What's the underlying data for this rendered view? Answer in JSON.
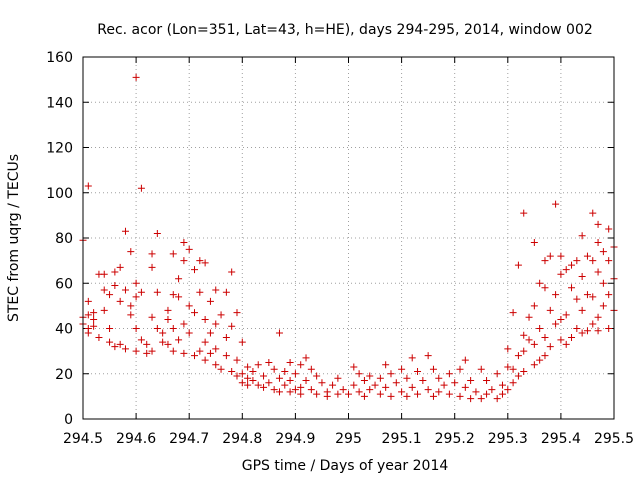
{
  "chart_data": {
    "type": "scatter",
    "title": "Rec. acor (Lon=351, Lat=43, h=HE), days 294-295, 2014, window 002",
    "xlabel": "GPS time / Days of year 2014",
    "ylabel": "STEC from uqrg / TECUs",
    "xlim": [
      294.5,
      295.5
    ],
    "ylim": [
      0,
      160
    ],
    "xticks": [
      "294.5",
      "294.6",
      "294.7",
      "294.8",
      "294.9",
      "295",
      "295.1",
      "295.2",
      "295.3",
      "295.4",
      "295.5"
    ],
    "yticks": [
      "0",
      "20",
      "40",
      "60",
      "80",
      "100",
      "120",
      "140",
      "160"
    ],
    "grid": true,
    "marker": "+",
    "color": "#cc0000",
    "points": [
      [
        294.5,
        79
      ],
      [
        294.5,
        45
      ],
      [
        294.5,
        42
      ],
      [
        294.51,
        40
      ],
      [
        294.51,
        46
      ],
      [
        294.51,
        52
      ],
      [
        294.51,
        38
      ],
      [
        294.51,
        103
      ],
      [
        294.52,
        44
      ],
      [
        294.52,
        47
      ],
      [
        294.52,
        41
      ],
      [
        294.53,
        64
      ],
      [
        294.53,
        36
      ],
      [
        294.54,
        48
      ],
      [
        294.54,
        57
      ],
      [
        294.54,
        64
      ],
      [
        294.55,
        40
      ],
      [
        294.55,
        34
      ],
      [
        294.55,
        55
      ],
      [
        294.56,
        65
      ],
      [
        294.56,
        59
      ],
      [
        294.56,
        32
      ],
      [
        294.57,
        67
      ],
      [
        294.57,
        33
      ],
      [
        294.57,
        52
      ],
      [
        294.58,
        83
      ],
      [
        294.58,
        57
      ],
      [
        294.58,
        31
      ],
      [
        294.59,
        50
      ],
      [
        294.59,
        46
      ],
      [
        294.59,
        74
      ],
      [
        294.6,
        151
      ],
      [
        294.6,
        60
      ],
      [
        294.6,
        54
      ],
      [
        294.6,
        40
      ],
      [
        294.6,
        30
      ],
      [
        294.61,
        102
      ],
      [
        294.61,
        56
      ],
      [
        294.61,
        35
      ],
      [
        294.62,
        29
      ],
      [
        294.62,
        33
      ],
      [
        294.63,
        73
      ],
      [
        294.63,
        67
      ],
      [
        294.63,
        45
      ],
      [
        294.63,
        30
      ],
      [
        294.64,
        82
      ],
      [
        294.64,
        56
      ],
      [
        294.64,
        40
      ],
      [
        294.65,
        38
      ],
      [
        294.65,
        34
      ],
      [
        294.66,
        48
      ],
      [
        294.66,
        44
      ],
      [
        294.66,
        33
      ],
      [
        294.67,
        73
      ],
      [
        294.67,
        55
      ],
      [
        294.67,
        40
      ],
      [
        294.67,
        30
      ],
      [
        294.68,
        62
      ],
      [
        294.68,
        54
      ],
      [
        294.68,
        35
      ],
      [
        294.69,
        78
      ],
      [
        294.69,
        70
      ],
      [
        294.69,
        42
      ],
      [
        294.69,
        29
      ],
      [
        294.7,
        75
      ],
      [
        294.7,
        50
      ],
      [
        294.7,
        38
      ],
      [
        294.71,
        66
      ],
      [
        294.71,
        47
      ],
      [
        294.71,
        28
      ],
      [
        294.72,
        70
      ],
      [
        294.72,
        56
      ],
      [
        294.72,
        30
      ],
      [
        294.73,
        69
      ],
      [
        294.73,
        44
      ],
      [
        294.73,
        34
      ],
      [
        294.73,
        26
      ],
      [
        294.74,
        52
      ],
      [
        294.74,
        38
      ],
      [
        294.74,
        29
      ],
      [
        294.75,
        57
      ],
      [
        294.75,
        42
      ],
      [
        294.75,
        31
      ],
      [
        294.75,
        24
      ],
      [
        294.76,
        46
      ],
      [
        294.76,
        22
      ],
      [
        294.77,
        56
      ],
      [
        294.77,
        36
      ],
      [
        294.77,
        28
      ],
      [
        294.78,
        65
      ],
      [
        294.78,
        41
      ],
      [
        294.78,
        21
      ],
      [
        294.79,
        47
      ],
      [
        294.79,
        26
      ],
      [
        294.79,
        19
      ],
      [
        294.8,
        34
      ],
      [
        294.8,
        20
      ],
      [
        294.8,
        16
      ],
      [
        294.81,
        23
      ],
      [
        294.81,
        18
      ],
      [
        294.81,
        15
      ],
      [
        294.82,
        21
      ],
      [
        294.82,
        17
      ],
      [
        294.83,
        24
      ],
      [
        294.83,
        15
      ],
      [
        294.84,
        19
      ],
      [
        294.84,
        14
      ],
      [
        294.85,
        25
      ],
      [
        294.85,
        16
      ],
      [
        294.86,
        22
      ],
      [
        294.86,
        13
      ],
      [
        294.87,
        38
      ],
      [
        294.87,
        18
      ],
      [
        294.87,
        12
      ],
      [
        294.88,
        21
      ],
      [
        294.88,
        15
      ],
      [
        294.89,
        25
      ],
      [
        294.89,
        17
      ],
      [
        294.89,
        12
      ],
      [
        294.9,
        20
      ],
      [
        294.9,
        13
      ],
      [
        294.91,
        24
      ],
      [
        294.91,
        14
      ],
      [
        294.91,
        11
      ],
      [
        294.92,
        27
      ],
      [
        294.92,
        17
      ],
      [
        294.93,
        22
      ],
      [
        294.93,
        13
      ],
      [
        294.94,
        19
      ],
      [
        294.94,
        11
      ],
      [
        294.95,
        16
      ],
      [
        294.96,
        12
      ],
      [
        294.96,
        10
      ],
      [
        294.97,
        15
      ],
      [
        294.98,
        18
      ],
      [
        294.98,
        11
      ],
      [
        294.99,
        13
      ],
      [
        295.0,
        11
      ],
      [
        295.01,
        23
      ],
      [
        295.01,
        15
      ],
      [
        295.02,
        20
      ],
      [
        295.02,
        12
      ],
      [
        295.03,
        17
      ],
      [
        295.03,
        10
      ],
      [
        295.04,
        19
      ],
      [
        295.04,
        13
      ],
      [
        295.05,
        15
      ],
      [
        295.06,
        18
      ],
      [
        295.06,
        11
      ],
      [
        295.07,
        24
      ],
      [
        295.07,
        14
      ],
      [
        295.08,
        20
      ],
      [
        295.08,
        10
      ],
      [
        295.09,
        16
      ],
      [
        295.1,
        22
      ],
      [
        295.1,
        12
      ],
      [
        295.11,
        18
      ],
      [
        295.11,
        10
      ],
      [
        295.12,
        27
      ],
      [
        295.12,
        14
      ],
      [
        295.13,
        21
      ],
      [
        295.13,
        11
      ],
      [
        295.14,
        17
      ],
      [
        295.15,
        28
      ],
      [
        295.15,
        13
      ],
      [
        295.16,
        22
      ],
      [
        295.16,
        10
      ],
      [
        295.17,
        18
      ],
      [
        295.17,
        12
      ],
      [
        295.18,
        15
      ],
      [
        295.19,
        20
      ],
      [
        295.19,
        11
      ],
      [
        295.2,
        16
      ],
      [
        295.21,
        22
      ],
      [
        295.21,
        10
      ],
      [
        295.22,
        26
      ],
      [
        295.22,
        14
      ],
      [
        295.23,
        17
      ],
      [
        295.23,
        9
      ],
      [
        295.24,
        12
      ],
      [
        295.25,
        22
      ],
      [
        295.25,
        9
      ],
      [
        295.26,
        17
      ],
      [
        295.26,
        11
      ],
      [
        295.27,
        13
      ],
      [
        295.28,
        20
      ],
      [
        295.28,
        9
      ],
      [
        295.29,
        15
      ],
      [
        295.29,
        11
      ],
      [
        295.3,
        31
      ],
      [
        295.3,
        23
      ],
      [
        295.3,
        13
      ],
      [
        295.31,
        47
      ],
      [
        295.31,
        22
      ],
      [
        295.31,
        16
      ],
      [
        295.32,
        68
      ],
      [
        295.32,
        28
      ],
      [
        295.32,
        19
      ],
      [
        295.33,
        91
      ],
      [
        295.33,
        37
      ],
      [
        295.33,
        30
      ],
      [
        295.33,
        21
      ],
      [
        295.34,
        45
      ],
      [
        295.34,
        35
      ],
      [
        295.35,
        78
      ],
      [
        295.35,
        50
      ],
      [
        295.35,
        33
      ],
      [
        295.35,
        24
      ],
      [
        295.36,
        60
      ],
      [
        295.36,
        40
      ],
      [
        295.36,
        26
      ],
      [
        295.37,
        70
      ],
      [
        295.37,
        58
      ],
      [
        295.37,
        36
      ],
      [
        295.37,
        28
      ],
      [
        295.38,
        72
      ],
      [
        295.38,
        48
      ],
      [
        295.38,
        32
      ],
      [
        295.39,
        95
      ],
      [
        295.39,
        55
      ],
      [
        295.39,
        42
      ],
      [
        295.4,
        72
      ],
      [
        295.4,
        64
      ],
      [
        295.4,
        44
      ],
      [
        295.4,
        35
      ],
      [
        295.41,
        66
      ],
      [
        295.41,
        46
      ],
      [
        295.41,
        33
      ],
      [
        295.42,
        68
      ],
      [
        295.42,
        58
      ],
      [
        295.42,
        36
      ],
      [
        295.43,
        70
      ],
      [
        295.43,
        53
      ],
      [
        295.43,
        40
      ],
      [
        295.44,
        81
      ],
      [
        295.44,
        63
      ],
      [
        295.44,
        48
      ],
      [
        295.44,
        38
      ],
      [
        295.45,
        72
      ],
      [
        295.45,
        55
      ],
      [
        295.45,
        39
      ],
      [
        295.46,
        91
      ],
      [
        295.46,
        70
      ],
      [
        295.46,
        54
      ],
      [
        295.46,
        42
      ],
      [
        295.47,
        86
      ],
      [
        295.47,
        78
      ],
      [
        295.47,
        65
      ],
      [
        295.47,
        45
      ],
      [
        295.47,
        39
      ],
      [
        295.48,
        74
      ],
      [
        295.48,
        60
      ],
      [
        295.48,
        50
      ],
      [
        295.49,
        84
      ],
      [
        295.49,
        70
      ],
      [
        295.49,
        55
      ],
      [
        295.49,
        40
      ],
      [
        295.5,
        76
      ],
      [
        295.5,
        62
      ],
      [
        295.5,
        48
      ]
    ]
  }
}
